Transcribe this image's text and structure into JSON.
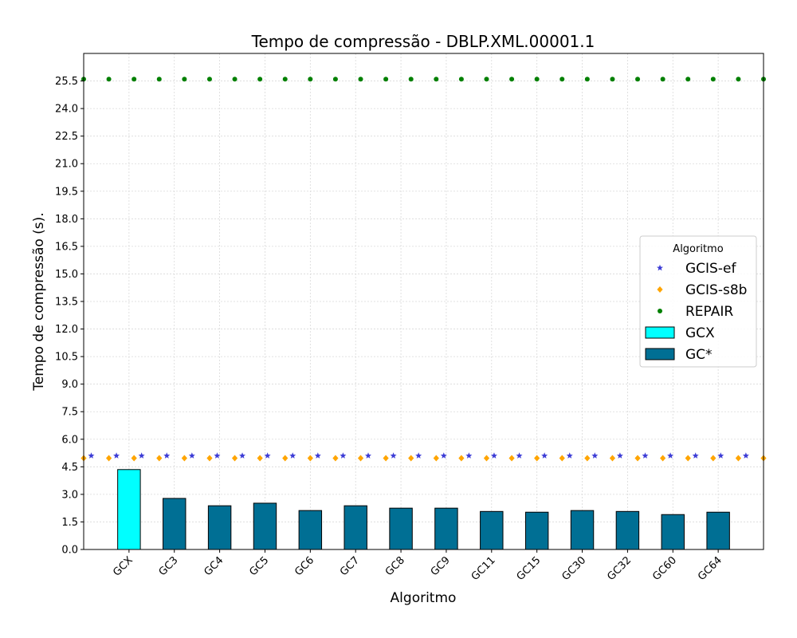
{
  "chart_data": {
    "type": "bar",
    "title": "Tempo de compressão -  DBLP.XML.00001.1",
    "xlabel": "Algoritmo",
    "ylabel": "Tempo de compressão (s).",
    "ylim": [
      0,
      27.0
    ],
    "yticks": [
      0.0,
      1.5,
      3.0,
      4.5,
      6.0,
      7.5,
      9.0,
      10.5,
      12.0,
      13.5,
      15.0,
      16.5,
      18.0,
      19.5,
      21.0,
      22.5,
      24.0,
      25.5
    ],
    "ytick_labels": [
      "0.0",
      "1.5",
      "3.0",
      "4.5",
      "6.0",
      "7.5",
      "9.0",
      "10.5",
      "12.0",
      "13.5",
      "15.0",
      "16.5",
      "18.0",
      "19.5",
      "21.0",
      "22.5",
      "24.0",
      "25.5"
    ],
    "categories": [
      "GCX",
      "GC3",
      "GC4",
      "GC5",
      "GC6",
      "GC7",
      "GC8",
      "GC9",
      "GC11",
      "GC15",
      "GC30",
      "GC32",
      "GC60",
      "GC64"
    ],
    "grid": true,
    "legend_title": "Algoritmo",
    "legend_position": "center-right",
    "bars": {
      "values": [
        4.35,
        2.78,
        2.38,
        2.52,
        2.12,
        2.38,
        2.25,
        2.25,
        2.07,
        2.03,
        2.12,
        2.07,
        1.9,
        2.03
      ],
      "series_labels": [
        "GCX",
        "GC*"
      ],
      "colors": [
        "#00ffff",
        "#006f94"
      ]
    },
    "lines": [
      {
        "name": "GCIS-ef",
        "value": 5.1,
        "marker": "star",
        "color": "#3d3dd6",
        "offset": 0.3
      },
      {
        "name": "GCIS-s8b",
        "value": 4.97,
        "marker": "diamond",
        "color": "#ffa500",
        "offset": 0.0
      },
      {
        "name": "REPAIR",
        "value": 25.6,
        "marker": "circle",
        "color": "#008000",
        "offset": 0.0
      }
    ],
    "legend": [
      {
        "label": "GCIS-ef",
        "kind": "star",
        "color": "#3d3dd6"
      },
      {
        "label": "GCIS-s8b",
        "kind": "diamond",
        "color": "#ffa500"
      },
      {
        "label": "REPAIR",
        "kind": "circle",
        "color": "#008000"
      },
      {
        "label": "GCX",
        "kind": "patch",
        "color": "#00ffff"
      },
      {
        "label": "GC*",
        "kind": "patch",
        "color": "#006f94"
      }
    ]
  }
}
